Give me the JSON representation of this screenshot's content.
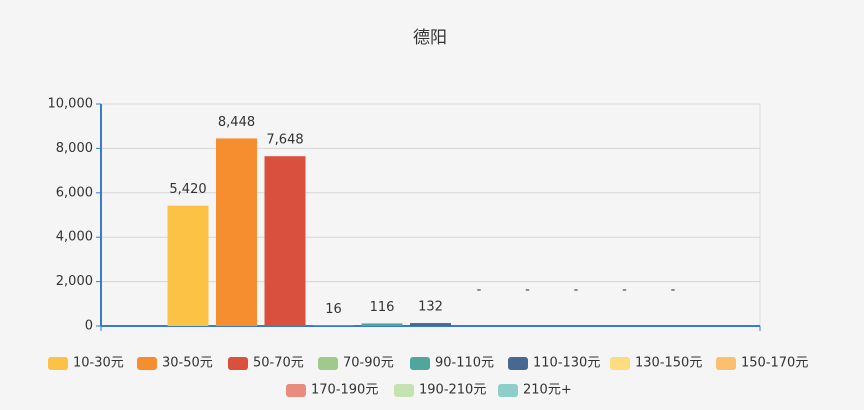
{
  "chart_data": {
    "type": "bar",
    "title": "德阳",
    "categories": [
      null
    ],
    "ylim": [
      0,
      10000
    ],
    "yticks": [
      0,
      {
        "value": 2000,
        "label": "2,000"
      },
      {
        "value": 4000,
        "label": "4,000"
      },
      {
        "value": 6000,
        "label": "6,000"
      },
      {
        "value": 8000,
        "label": "8,000"
      },
      {
        "value": 10000,
        "label": "10,000"
      }
    ],
    "grid": true,
    "series": [
      {
        "name": "10-30元",
        "color": "#fbc245",
        "values": [
          5420
        ],
        "value_labels": [
          "5,420"
        ]
      },
      {
        "name": "30-50元",
        "color": "#f68d2e",
        "values": [
          8448
        ],
        "value_labels": [
          "8,448"
        ]
      },
      {
        "name": "50-70元",
        "color": "#d9503f",
        "values": [
          7648
        ],
        "value_labels": [
          "7,648"
        ]
      },
      {
        "name": "70-90元",
        "color": "#9ecb8b",
        "values": [
          16
        ],
        "value_labels": [
          "16"
        ]
      },
      {
        "name": "90-110元",
        "color": "#4fa79c",
        "values": [
          116
        ],
        "value_labels": [
          "116"
        ]
      },
      {
        "name": "110-130元",
        "color": "#476891",
        "values": [
          132
        ],
        "value_labels": [
          "132"
        ]
      },
      {
        "name": "130-150元",
        "color": "#fddb7f",
        "values": [
          null
        ],
        "value_labels": [
          "-"
        ]
      },
      {
        "name": "150-170元",
        "color": "#fbbf6e",
        "values": [
          null
        ],
        "value_labels": [
          "-"
        ]
      },
      {
        "name": "170-190元",
        "color": "#e98c80",
        "values": [
          null
        ],
        "value_labels": [
          "-"
        ]
      },
      {
        "name": "190-210元",
        "color": "#c5e2b1",
        "values": [
          null
        ],
        "value_labels": [
          "-"
        ]
      },
      {
        "name": "210元+",
        "color": "#8dcfc8",
        "values": [
          null
        ],
        "value_labels": [
          "-"
        ]
      }
    ]
  }
}
